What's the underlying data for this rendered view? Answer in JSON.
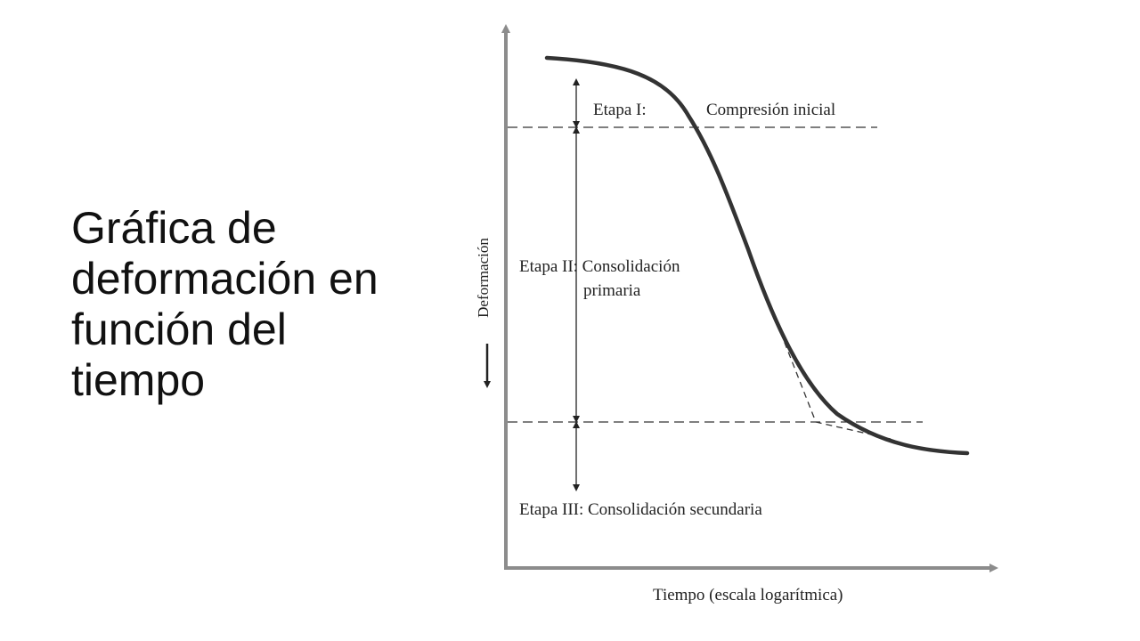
{
  "slide": {
    "title_lines": [
      "Gráfica de",
      "deformación en",
      "función del",
      "tiempo"
    ]
  },
  "diagram": {
    "y_axis_label": "Deformación",
    "x_axis_label": "Tiempo (escala logarítmica)",
    "stage1": {
      "label": "Etapa I:",
      "description": "Compresión inicial"
    },
    "stage2": {
      "label": "Etapa II: Consolidación",
      "label_line2": "primaria"
    },
    "stage3": {
      "label": "Etapa III: Consolidación secundaria"
    },
    "colors": {
      "curve": "#333333",
      "axis": "#8c8c8c",
      "dashed": "#333333",
      "text": "#222222"
    }
  }
}
